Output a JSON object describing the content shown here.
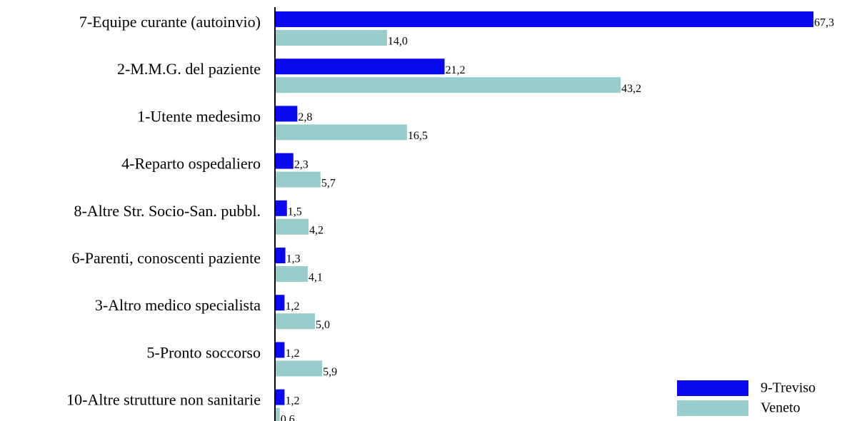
{
  "chart_data": {
    "type": "barh",
    "categories": [
      "7-Equipe curante (autoinvio)",
      "2-M.M.G. del paziente",
      "1-Utente medesimo",
      "4-Reparto ospedaliero",
      "8-Altre Str. Socio-San. pubbl.",
      "6-Parenti, conoscenti paziente",
      "3-Altro medico specialista",
      "5-Pronto soccorso",
      "10-Altre strutture non sanitarie"
    ],
    "series": [
      {
        "name": "9-Treviso",
        "color": "#0a0aee",
        "values": [
          67.3,
          21.2,
          2.8,
          2.3,
          1.5,
          1.3,
          1.2,
          1.2,
          1.2
        ],
        "value_labels": [
          "67,3",
          "21,2",
          "2,8",
          "2,3",
          "1,5",
          "1,3",
          "1,2",
          "1,2",
          "1,2"
        ]
      },
      {
        "name": "Veneto",
        "color": "#99cccc",
        "values": [
          14.0,
          43.2,
          16.5,
          5.7,
          4.2,
          4.1,
          5.0,
          5.9,
          0.6
        ],
        "value_labels": [
          "14,0",
          "43,2",
          "16,5",
          "5,7",
          "4,2",
          "4,1",
          "5,0",
          "5,9",
          "0,6"
        ]
      }
    ],
    "legend": "lower right"
  }
}
